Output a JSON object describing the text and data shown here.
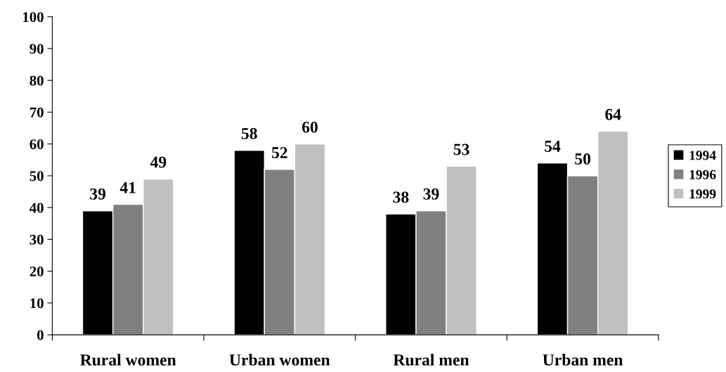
{
  "chart_data": {
    "type": "bar",
    "categories": [
      "Rural women",
      "Urban women",
      "Rural men",
      "Urban men"
    ],
    "series": [
      {
        "name": "1994",
        "color": "#000000",
        "values": [
          39,
          58,
          38,
          54
        ]
      },
      {
        "name": "1996",
        "color": "#808080",
        "values": [
          41,
          52,
          39,
          50
        ]
      },
      {
        "name": "1999",
        "color": "#c0c0c0",
        "values": [
          49,
          60,
          53,
          64
        ]
      }
    ],
    "ylim": [
      0,
      100
    ],
    "yticks": [
      0,
      10,
      20,
      30,
      40,
      50,
      60,
      70,
      80,
      90,
      100
    ],
    "data_labels": true,
    "legend": "right",
    "grid": false
  }
}
